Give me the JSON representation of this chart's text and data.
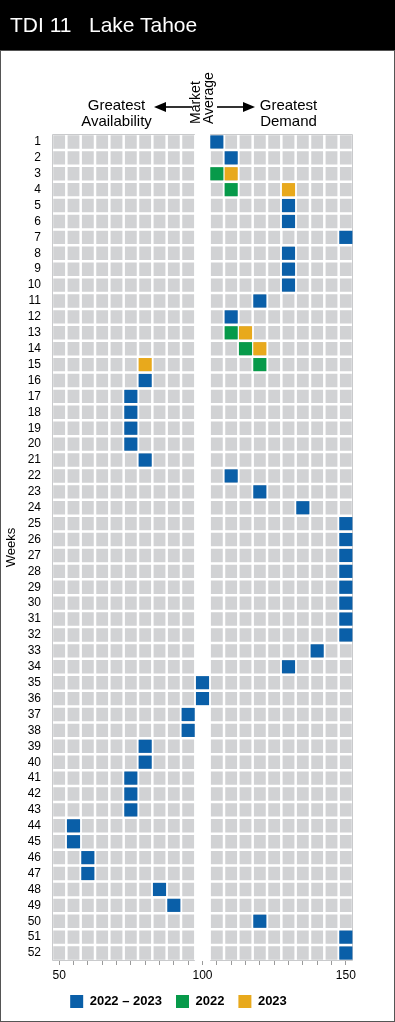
{
  "chart_data": {
    "type": "scatter",
    "title": "TDI 11   Lake Tahoe",
    "ylabel": "Weeks",
    "xlim": [
      47.5,
      152.5
    ],
    "xticks": [
      50,
      {
        "value": 55,
        "label": null
      },
      {
        "value": 60,
        "label": null
      },
      {
        "value": 65,
        "label": null
      },
      {
        "value": 70,
        "label": null
      },
      {
        "value": 75,
        "label": null
      },
      {
        "value": 80,
        "label": null
      },
      {
        "value": 85,
        "label": null
      },
      {
        "value": 90,
        "label": null
      },
      {
        "value": 95,
        "label": null
      },
      100,
      {
        "value": 105,
        "label": null
      },
      {
        "value": 110,
        "label": null
      },
      {
        "value": 115,
        "label": null
      },
      {
        "value": 120,
        "label": null
      },
      {
        "value": 125,
        "label": null
      },
      {
        "value": 130,
        "label": null
      },
      {
        "value": 135,
        "label": null
      },
      {
        "value": 140,
        "label": null
      },
      {
        "value": 145,
        "label": null
      },
      150
    ],
    "ylim": [
      52.5,
      0.5
    ],
    "yticks": [
      1,
      2,
      3,
      4,
      5,
      6,
      7,
      8,
      9,
      10,
      11,
      12,
      13,
      14,
      15,
      16,
      17,
      18,
      19,
      20,
      21,
      22,
      23,
      24,
      25,
      26,
      27,
      28,
      29,
      30,
      31,
      32,
      33,
      34,
      35,
      36,
      37,
      38,
      39,
      40,
      41,
      42,
      43,
      44,
      45,
      46,
      47,
      48,
      49,
      50,
      51,
      52
    ],
    "series": [
      {
        "name": "2022 – 2023",
        "color": "#0a5fa8",
        "x": [
          105,
          110,
          130,
          130,
          150,
          130,
          130,
          130,
          120,
          110,
          80,
          75,
          75,
          75,
          75,
          80,
          110,
          120,
          135,
          150,
          150,
          150,
          150,
          150,
          150,
          150,
          150,
          140,
          130,
          100,
          100,
          95,
          95,
          80,
          80,
          75,
          75,
          75,
          55,
          55,
          60,
          60,
          85,
          90,
          120,
          150,
          150
        ],
        "values": [
          1,
          2,
          5,
          6,
          7,
          8,
          9,
          10,
          11,
          12,
          16,
          17,
          18,
          19,
          20,
          21,
          22,
          23,
          24,
          25,
          26,
          27,
          28,
          29,
          30,
          31,
          32,
          33,
          34,
          35,
          36,
          37,
          38,
          39,
          40,
          41,
          42,
          43,
          44,
          45,
          46,
          47,
          48,
          49,
          50,
          51,
          52
        ]
      },
      {
        "name": "2022",
        "color": "#079a4a",
        "x": [
          105,
          110,
          110,
          115,
          120
        ],
        "values": [
          3,
          4,
          13,
          14,
          15
        ]
      },
      {
        "name": "2023",
        "color": "#e8a91c",
        "x": [
          110,
          130,
          115,
          120,
          80
        ],
        "values": [
          3,
          4,
          13,
          14,
          15
        ]
      }
    ],
    "ref_lines": [
      {
        "axis": "x",
        "value": 100,
        "label": "Market Average",
        "color": "#ffffff"
      }
    ],
    "annotations": [
      "Greatest Availability",
      "Greatest Demand"
    ],
    "marker": "square",
    "grid": "x",
    "legend": "bottom"
  }
}
